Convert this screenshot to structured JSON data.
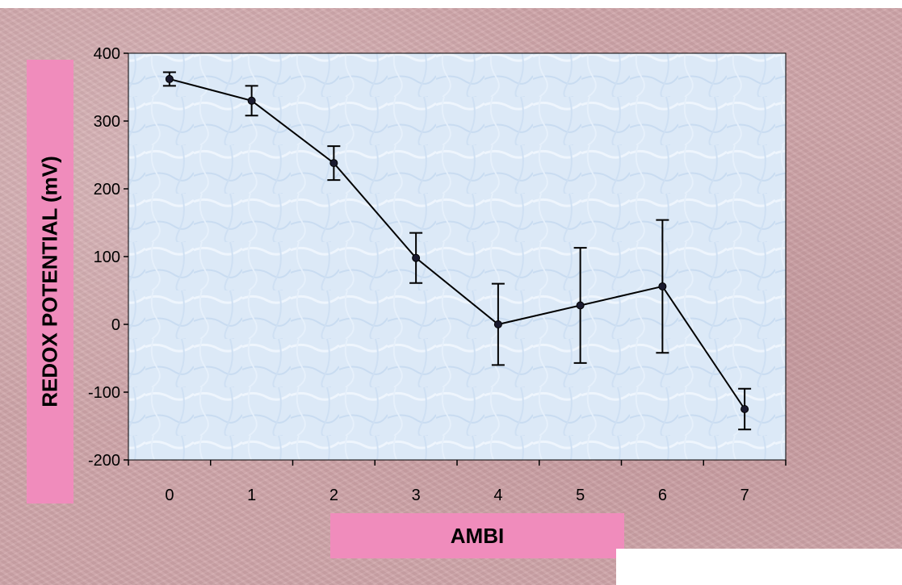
{
  "chart_data": {
    "type": "line",
    "xlabel": "AMBI",
    "ylabel": "REDOX POTENTIAL (mV)",
    "x": [
      0,
      1,
      2,
      3,
      4,
      5,
      6,
      7
    ],
    "series": [
      {
        "values": [
          362,
          330,
          238,
          98,
          0,
          28,
          56,
          -125
        ],
        "error": [
          10,
          22,
          25,
          37,
          60,
          85,
          98,
          30
        ]
      }
    ],
    "xlim": [
      -0.5,
      7.5
    ],
    "ylim": [
      -200,
      400
    ],
    "xticks": [
      "0",
      "1",
      "2",
      "3",
      "4",
      "5",
      "6",
      "7"
    ],
    "yticks": [
      "-200",
      "-100",
      "0",
      "100",
      "200",
      "300",
      "400"
    ],
    "grid": false,
    "legend": "none",
    "colors": {
      "plot_background": "#dce9f7",
      "label_box": "#f08cbc",
      "line": "#000000",
      "page_background": "#cfa5a9"
    }
  }
}
